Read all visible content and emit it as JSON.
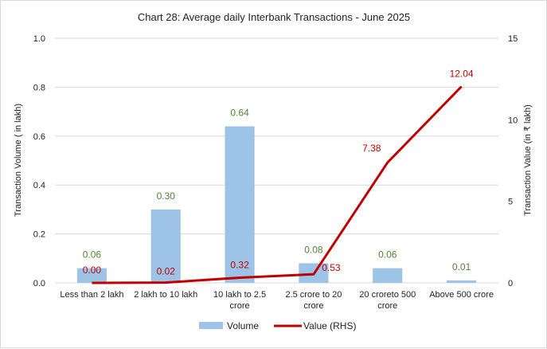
{
  "chart_data": {
    "type": "bar+line",
    "title": "Chart 28: Average daily Interbank Transactions - June 2025",
    "categories": [
      [
        "Less than 2 lakh"
      ],
      [
        "2 lakh to 10 lakh"
      ],
      [
        "10 lakh to 2.5",
        "crore"
      ],
      [
        "2.5 crore to 20",
        "crore"
      ],
      [
        "20 croreto 500",
        "crore"
      ],
      [
        "Above 500 crore"
      ]
    ],
    "ylabel": "Transaction Volume ( in lakh)",
    "y2label": "Transaction Value (in ₹ lakh)",
    "ylim": [
      0,
      1.0
    ],
    "y2lim": [
      0,
      15
    ],
    "yticks": [
      "0.0",
      "0.2",
      "0.4",
      "0.6",
      "0.8",
      "1.0"
    ],
    "y2ticks": [
      "0",
      "5",
      "10",
      "15"
    ],
    "grid": true,
    "legend_position": "bottom",
    "series": [
      {
        "name": "Volume",
        "type": "bar",
        "axis": "left",
        "color": "#9dc3e6",
        "label_color": "#548235",
        "values": [
          0.06,
          0.3,
          0.64,
          0.08,
          0.06,
          0.01
        ],
        "labels": [
          "0.06",
          "0.30",
          "0.64",
          "0.08",
          "0.06",
          "0.01"
        ]
      },
      {
        "name": "Value (RHS)",
        "type": "line",
        "axis": "right",
        "color": "#c00000",
        "label_color": "#c00000",
        "values": [
          0.0,
          0.02,
          0.32,
          0.53,
          7.38,
          12.04
        ],
        "labels": [
          "0.00",
          "0.02",
          "0.32",
          "0.53",
          "7.38",
          "12.04"
        ]
      }
    ]
  }
}
